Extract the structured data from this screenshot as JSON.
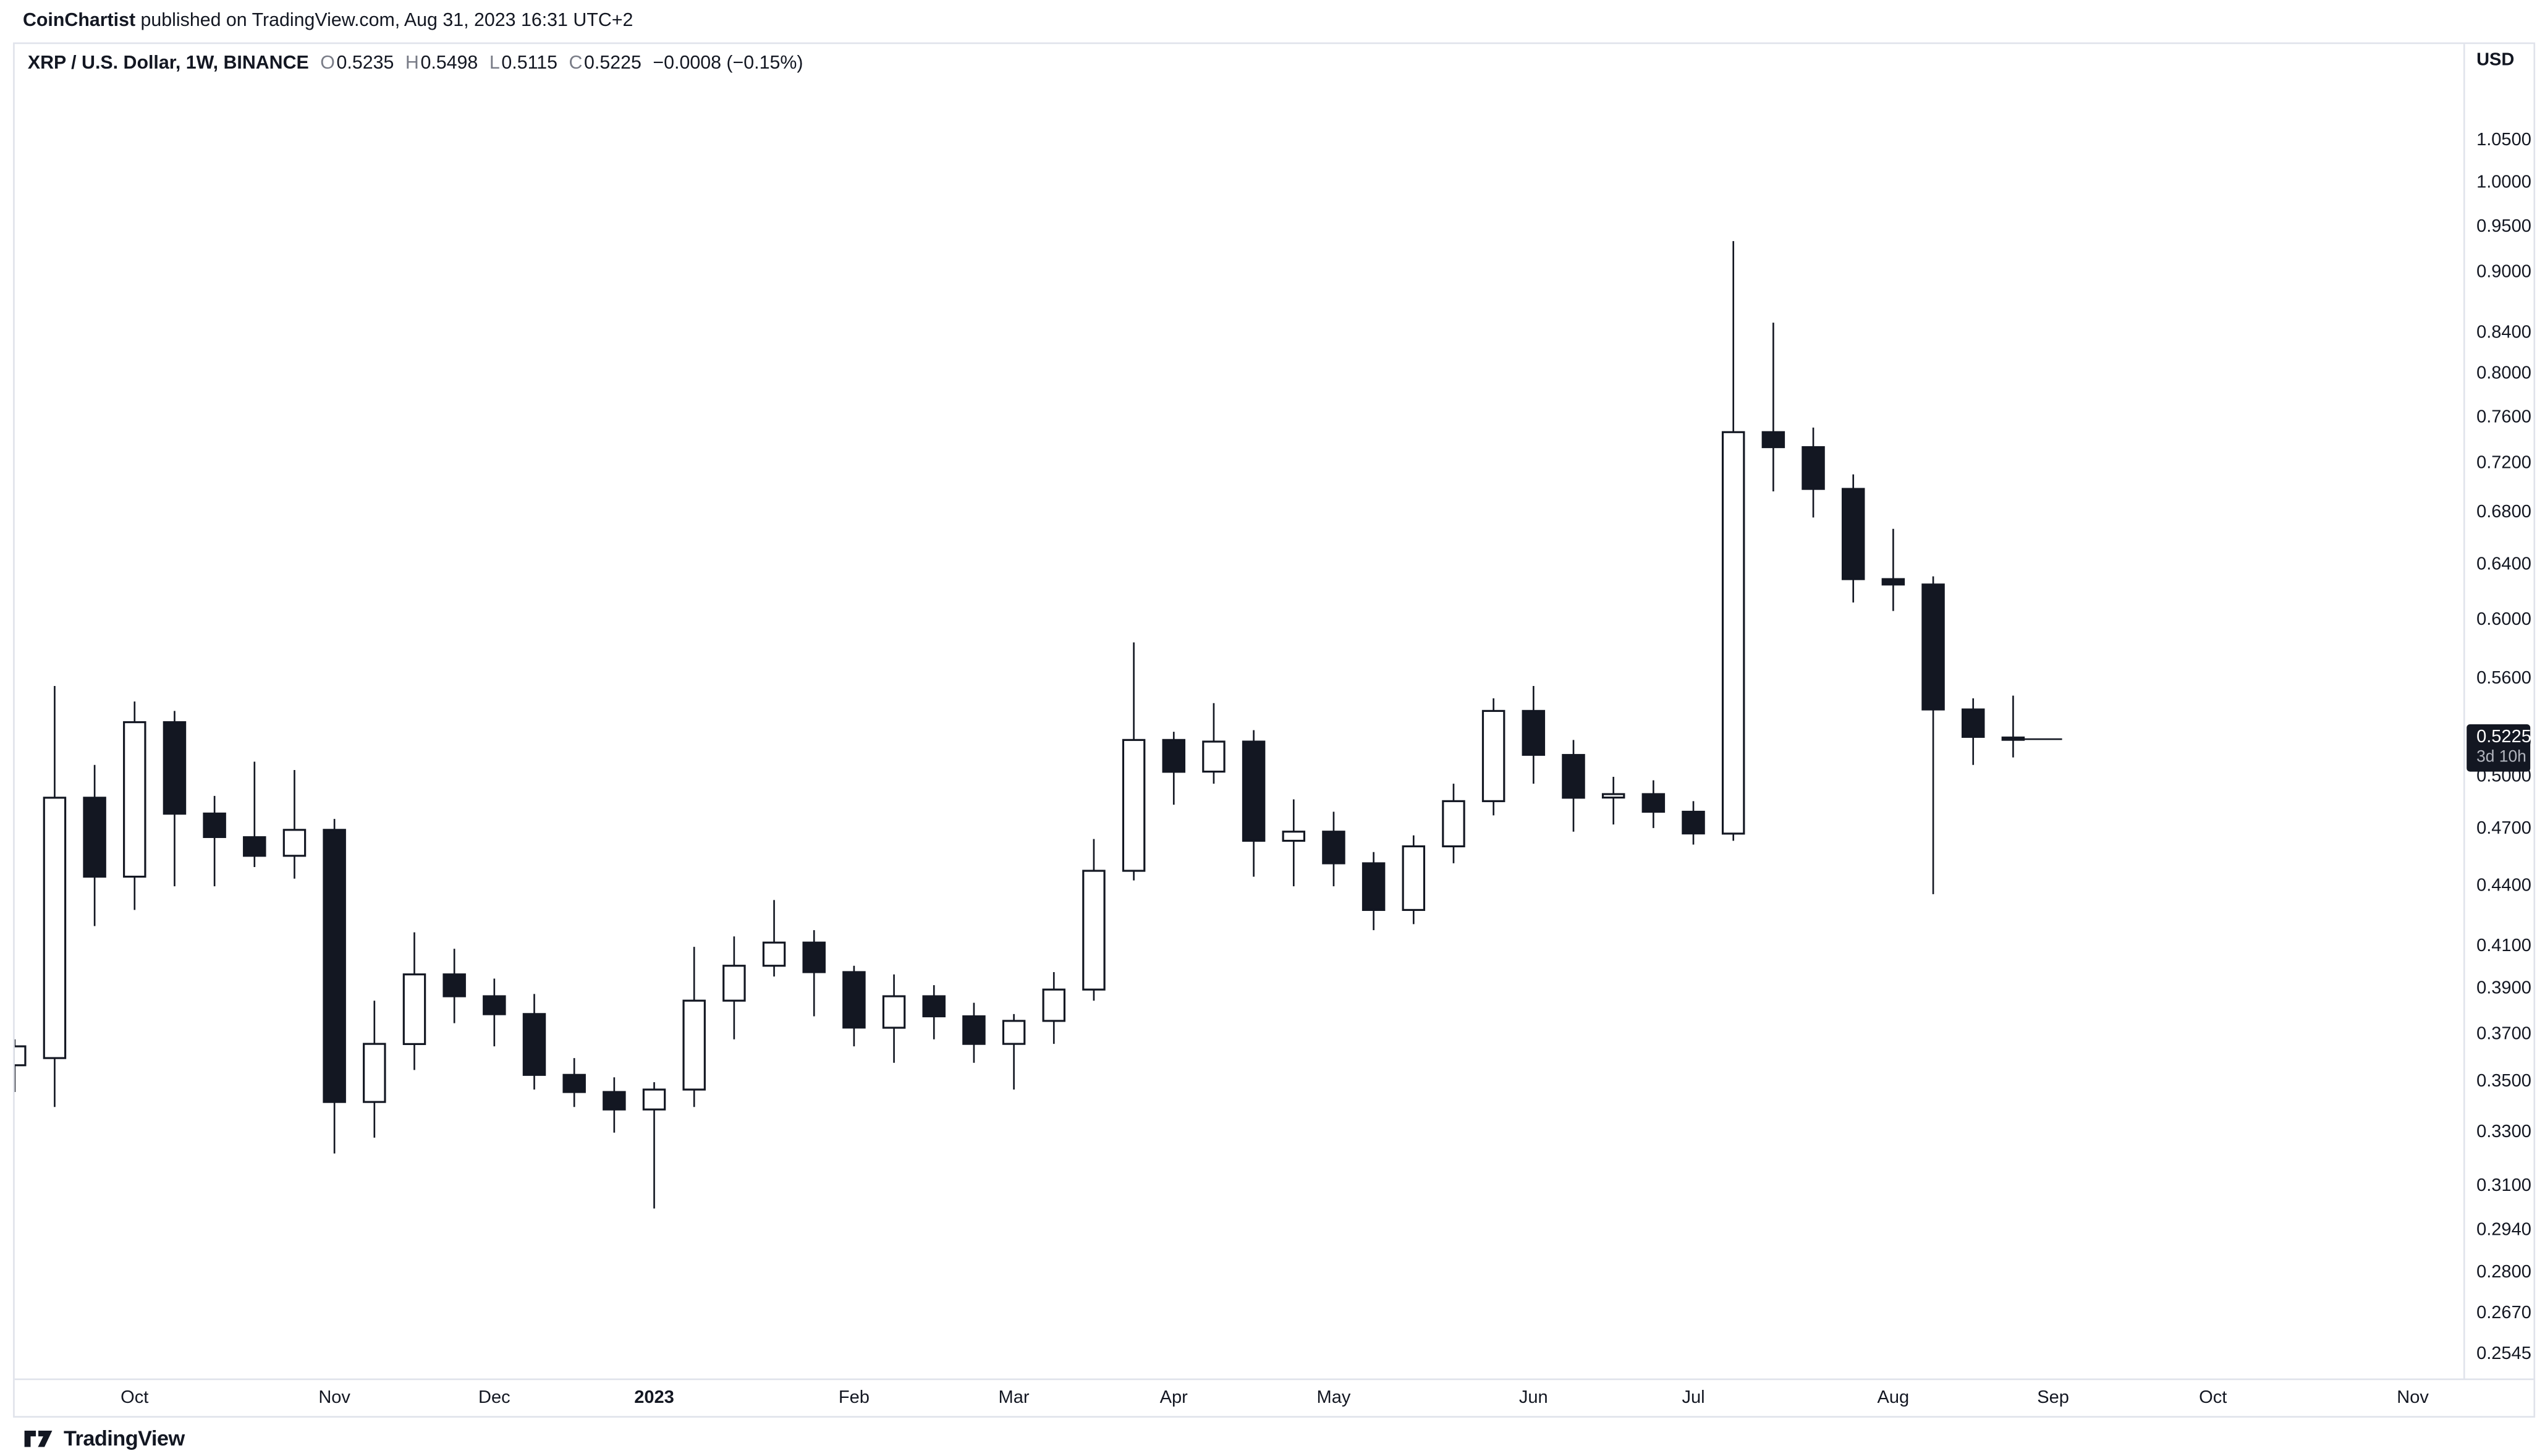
{
  "attribution": {
    "author": "CoinChartist",
    "text": " published on TradingView.com, Aug 31, 2023 16:31 UTC+2"
  },
  "legend": {
    "symbol": "XRP / U.S. Dollar, 1W, BINANCE",
    "o_label": "O",
    "o": "0.5235",
    "h_label": "H",
    "h": "0.5498",
    "l_label": "L",
    "l": "0.5115",
    "c_label": "C",
    "c": "0.5225",
    "change": "−0.0008 (−0.15%)"
  },
  "price_axis": {
    "currency": "USD",
    "labels": [
      "1.0500",
      "1.0000",
      "0.9500",
      "0.9000",
      "0.8400",
      "0.8000",
      "0.7600",
      "0.7200",
      "0.6800",
      "0.6400",
      "0.6000",
      "0.5600",
      "0.5200",
      "0.5000",
      "0.4700",
      "0.4400",
      "0.4100",
      "0.3900",
      "0.3700",
      "0.3500",
      "0.3300",
      "0.3100",
      "0.2940",
      "0.2800",
      "0.2670",
      "0.2545"
    ],
    "last_price": "0.5225",
    "countdown": "3d 10h",
    "badge_color": "#131722"
  },
  "time_axis": {
    "months": [
      {
        "t": "Oct",
        "i": 3
      },
      {
        "t": "Nov",
        "i": 8
      },
      {
        "t": "Dec",
        "i": 12
      },
      {
        "t": "2023",
        "i": 16,
        "bold": true
      },
      {
        "t": "Feb",
        "i": 21
      },
      {
        "t": "Mar",
        "i": 25
      },
      {
        "t": "Apr",
        "i": 29
      },
      {
        "t": "May",
        "i": 33
      },
      {
        "t": "Jun",
        "i": 38
      },
      {
        "t": "Jul",
        "i": 42
      },
      {
        "t": "Aug",
        "i": 47
      },
      {
        "t": "Sep",
        "i": 51
      },
      {
        "t": "Oct",
        "i": 55
      },
      {
        "t": "Nov",
        "i": 60
      }
    ]
  },
  "branding": {
    "name": "TradingView"
  },
  "colors": {
    "text": "#131722",
    "muted": "#787b86",
    "axis_line": "#e0e3eb",
    "candle_up_fill": "#ffffff",
    "candle_down_fill": "#131722",
    "candle_border": "#131722"
  },
  "chart_data": {
    "type": "candlestick",
    "title": "XRP / U.S. Dollar, 1W, BINANCE",
    "symbol": "XRP/USD",
    "interval": "1W",
    "exchange": "BINANCE",
    "yscale": "log",
    "ylim": [
      0.2476,
      1.177
    ],
    "grid": false,
    "up_style": "hollow-white-black-border",
    "down_style": "solid-black",
    "columns": [
      "week_start",
      "open",
      "high",
      "low",
      "close"
    ],
    "candles": [
      [
        "2022-09-12",
        0.357,
        0.368,
        0.346,
        0.365
      ],
      [
        "2022-09-19",
        0.36,
        0.556,
        0.34,
        0.488
      ],
      [
        "2022-09-26",
        0.488,
        0.507,
        0.42,
        0.445
      ],
      [
        "2022-10-03",
        0.445,
        0.546,
        0.428,
        0.533
      ],
      [
        "2022-10-10",
        0.533,
        0.54,
        0.44,
        0.479
      ],
      [
        "2022-10-17",
        0.479,
        0.489,
        0.44,
        0.466
      ],
      [
        "2022-10-24",
        0.466,
        0.509,
        0.45,
        0.456
      ],
      [
        "2022-10-31",
        0.456,
        0.504,
        0.444,
        0.47
      ],
      [
        "2022-11-07",
        0.47,
        0.476,
        0.322,
        0.342
      ],
      [
        "2022-11-14",
        0.342,
        0.385,
        0.328,
        0.366
      ],
      [
        "2022-11-21",
        0.366,
        0.417,
        0.355,
        0.397
      ],
      [
        "2022-11-28",
        0.397,
        0.409,
        0.375,
        0.387
      ],
      [
        "2022-12-05",
        0.387,
        0.395,
        0.365,
        0.379
      ],
      [
        "2022-12-12",
        0.379,
        0.388,
        0.347,
        0.353
      ],
      [
        "2022-12-19",
        0.353,
        0.36,
        0.34,
        0.346
      ],
      [
        "2022-12-26",
        0.346,
        0.352,
        0.33,
        0.339
      ],
      [
        "2023-01-02",
        0.339,
        0.35,
        0.302,
        0.347
      ],
      [
        "2023-01-09",
        0.347,
        0.41,
        0.34,
        0.385
      ],
      [
        "2023-01-16",
        0.385,
        0.415,
        0.368,
        0.401
      ],
      [
        "2023-01-23",
        0.401,
        0.433,
        0.396,
        0.412
      ],
      [
        "2023-01-30",
        0.412,
        0.418,
        0.378,
        0.398
      ],
      [
        "2023-02-06",
        0.398,
        0.401,
        0.365,
        0.373
      ],
      [
        "2023-02-13",
        0.373,
        0.397,
        0.358,
        0.387
      ],
      [
        "2023-02-20",
        0.387,
        0.392,
        0.368,
        0.378
      ],
      [
        "2023-02-27",
        0.378,
        0.384,
        0.358,
        0.366
      ],
      [
        "2023-03-06",
        0.366,
        0.379,
        0.347,
        0.376
      ],
      [
        "2023-03-13",
        0.376,
        0.398,
        0.366,
        0.39
      ],
      [
        "2023-03-20",
        0.39,
        0.465,
        0.385,
        0.448
      ],
      [
        "2023-03-27",
        0.448,
        0.585,
        0.443,
        0.522
      ],
      [
        "2023-04-03",
        0.522,
        0.527,
        0.484,
        0.503
      ],
      [
        "2023-04-10",
        0.503,
        0.545,
        0.496,
        0.521
      ],
      [
        "2023-04-17",
        0.521,
        0.528,
        0.445,
        0.464
      ],
      [
        "2023-04-24",
        0.464,
        0.487,
        0.44,
        0.469
      ],
      [
        "2023-05-01",
        0.469,
        0.48,
        0.44,
        0.452
      ],
      [
        "2023-05-08",
        0.452,
        0.458,
        0.418,
        0.428
      ],
      [
        "2023-05-15",
        0.428,
        0.467,
        0.421,
        0.461
      ],
      [
        "2023-05-22",
        0.461,
        0.496,
        0.452,
        0.486
      ],
      [
        "2023-05-29",
        0.486,
        0.548,
        0.478,
        0.54
      ],
      [
        "2023-06-05",
        0.54,
        0.556,
        0.496,
        0.513
      ],
      [
        "2023-06-12",
        0.513,
        0.522,
        0.469,
        0.488
      ],
      [
        "2023-06-19",
        0.488,
        0.5,
        0.473,
        0.49
      ],
      [
        "2023-06-26",
        0.49,
        0.498,
        0.471,
        0.48
      ],
      [
        "2023-07-03",
        0.48,
        0.486,
        0.462,
        0.468
      ],
      [
        "2023-07-10",
        0.468,
        0.935,
        0.464,
        0.748
      ],
      [
        "2023-07-17",
        0.748,
        0.85,
        0.698,
        0.735
      ],
      [
        "2023-07-24",
        0.735,
        0.752,
        0.677,
        0.7
      ],
      [
        "2023-07-31",
        0.7,
        0.712,
        0.613,
        0.63
      ],
      [
        "2023-08-07",
        0.63,
        0.668,
        0.607,
        0.626
      ],
      [
        "2023-08-14",
        0.626,
        0.632,
        0.436,
        0.541
      ],
      [
        "2023-08-21",
        0.541,
        0.548,
        0.507,
        0.524
      ],
      [
        "2023-08-28",
        0.5235,
        0.5498,
        0.5115,
        0.5225
      ]
    ],
    "layout": {
      "x0": 0,
      "dx": 24.5,
      "body_w": 13,
      "pane_w": 1501,
      "pane_h": 818
    }
  }
}
